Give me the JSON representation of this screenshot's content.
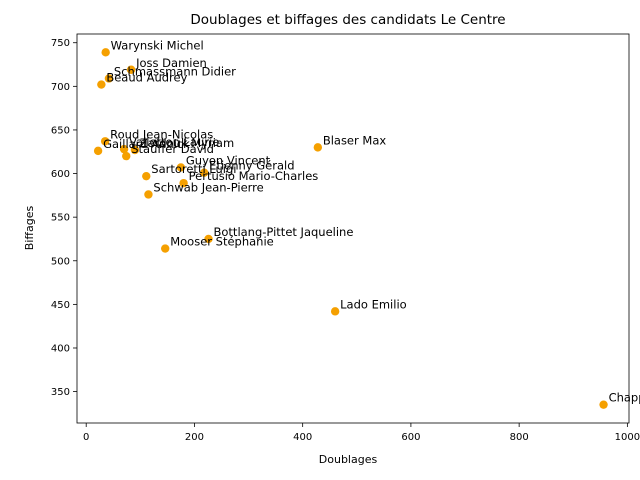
{
  "chart_data": {
    "type": "scatter",
    "title": "Doublages et biffages des candidats Le Centre",
    "xlabel": "Doublages",
    "ylabel": "Biffages",
    "xlim": [
      -17,
      1003
    ],
    "ylim": [
      314,
      760
    ],
    "xticks": [
      0,
      200,
      400,
      600,
      800,
      1000
    ],
    "yticks": [
      350,
      400,
      450,
      500,
      550,
      600,
      650,
      700,
      750
    ],
    "grid": false,
    "marker_color": "#f5a000",
    "points": [
      {
        "name": "Warynski Michel",
        "x": 36,
        "y": 739
      },
      {
        "name": "Joss Damien",
        "x": 83,
        "y": 719
      },
      {
        "name": "Schmassmann Didier",
        "x": 42,
        "y": 709
      },
      {
        "name": "Beaud Audrey",
        "x": 28,
        "y": 702
      },
      {
        "name": "Roud Jean-Nicolas",
        "x": 35,
        "y": 637
      },
      {
        "name": "Gaillard Annick",
        "x": 22,
        "y": 626
      },
      {
        "name": "Vallotton Laurie",
        "x": 70,
        "y": 628
      },
      {
        "name": "Zardouk Myriam",
        "x": 90,
        "y": 627
      },
      {
        "name": "Stauffer David",
        "x": 74,
        "y": 620
      },
      {
        "name": "Blaser Max",
        "x": 428,
        "y": 630
      },
      {
        "name": "Guyon Vincent",
        "x": 175,
        "y": 607
      },
      {
        "name": "Etienny Gérald",
        "x": 218,
        "y": 601
      },
      {
        "name": "Sartoretti Luigi",
        "x": 111,
        "y": 597
      },
      {
        "name": "Pertusio Mario-Charles",
        "x": 180,
        "y": 589
      },
      {
        "name": "Schwab Jean-Pierre",
        "x": 115,
        "y": 576
      },
      {
        "name": "Bottlang-Pittet Jaqueline",
        "x": 226,
        "y": 525
      },
      {
        "name": "Mooser Stéphanie",
        "x": 146,
        "y": 514
      },
      {
        "name": "Lado Emilio",
        "x": 460,
        "y": 442
      },
      {
        "name": "Chappuis",
        "x": 956,
        "y": 335
      }
    ]
  }
}
